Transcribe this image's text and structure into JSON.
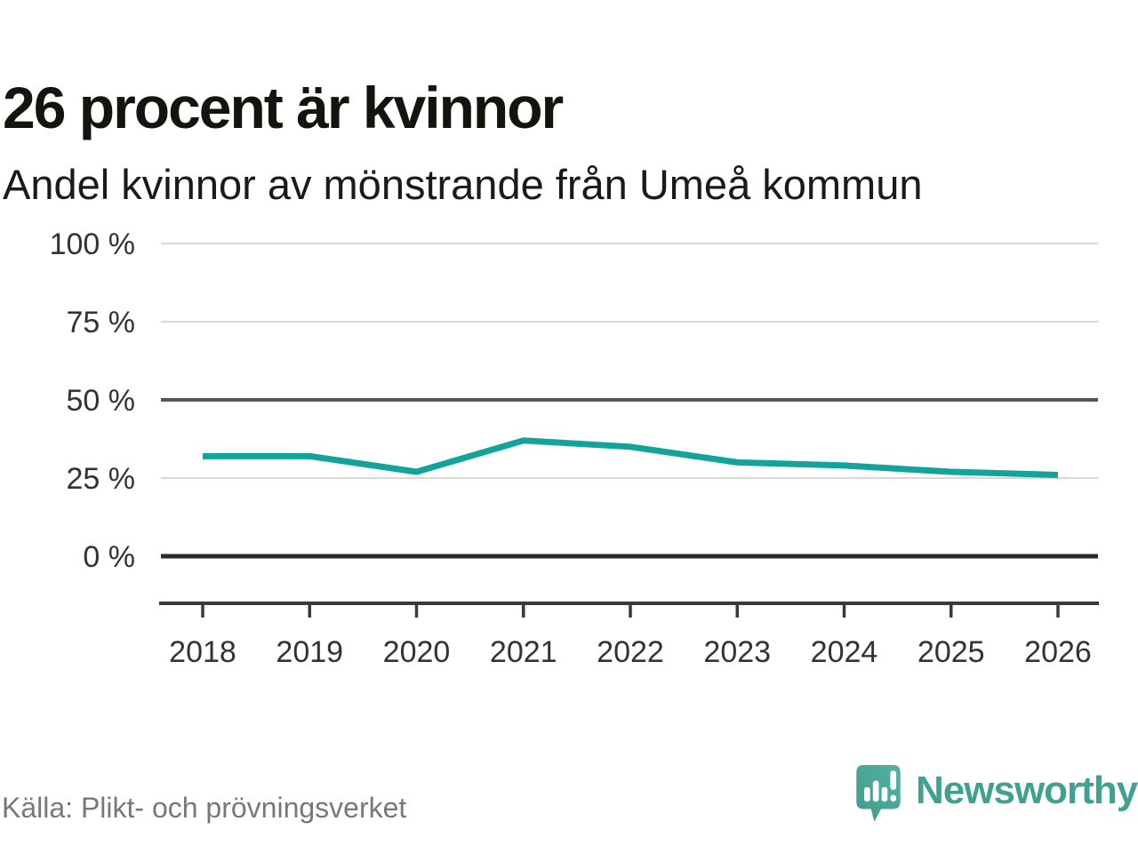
{
  "header": {
    "title": "26 procent är kvinnor",
    "subtitle": "Andel kvinnor av mönstrande från Umeå kommun"
  },
  "chart_data": {
    "type": "line",
    "title": "26 procent är kvinnor",
    "subtitle": "Andel kvinnor av mönstrande från Umeå kommun",
    "categories": [
      "2018",
      "2019",
      "2020",
      "2021",
      "2022",
      "2023",
      "2024",
      "2025",
      "2026"
    ],
    "series": [
      {
        "name": "Andel kvinnor av mönstrande från Umeå kommun",
        "values": [
          32,
          32,
          27,
          37,
          35,
          30,
          29,
          27,
          26
        ],
        "color": "#12a49a"
      }
    ],
    "unit": "%",
    "xlabel": "",
    "ylabel": "",
    "ylim": [
      0,
      100
    ],
    "yticks": [
      {
        "value": 0,
        "label": "0 %",
        "style": "baseline"
      },
      {
        "value": 25,
        "label": "25 %",
        "style": "minor"
      },
      {
        "value": 50,
        "label": "50 %",
        "style": "reference"
      },
      {
        "value": 75,
        "label": "75 %",
        "style": "minor"
      },
      {
        "value": 100,
        "label": "100 %",
        "style": "minor"
      }
    ],
    "grid": "horizontal-only",
    "legend": "none"
  },
  "colors": {
    "line": "#12a49a",
    "grid_minor": "#d8d8d8",
    "grid_reference": "#55565a",
    "grid_baseline": "#2b2b2b",
    "axis": "#3a3a3a",
    "tick_label": "#333333",
    "title": "#15130e",
    "subtitle": "#1a1a1a",
    "source": "#77787b",
    "brand": "#40a191",
    "logo_dark": "#3e9b8d",
    "logo_light": "#55b2a2"
  },
  "footer": {
    "source": "Källa: Plikt- och prövningsverket",
    "brand_name": "Newsworthy"
  }
}
